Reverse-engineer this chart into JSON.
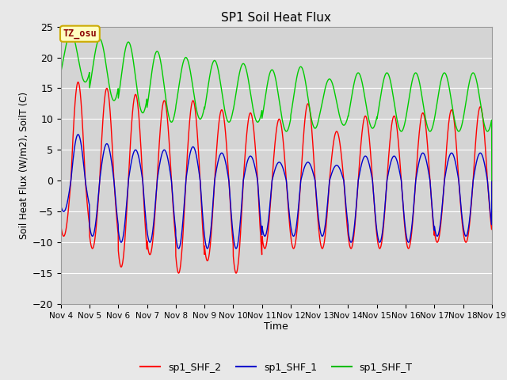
{
  "title": "SP1 Soil Heat Flux",
  "xlabel": "Time",
  "ylabel": "Soil Heat Flux (W/m2), SoilT (C)",
  "ylim": [
    -20,
    25
  ],
  "fig_width": 6.4,
  "fig_height": 4.8,
  "dpi": 100,
  "background_color": "#e8e8e8",
  "plot_bg_color": "#d4d4d4",
  "tz_label": "TZ_osu",
  "legend_entries": [
    "sp1_SHF_2",
    "sp1_SHF_1",
    "sp1_SHF_T"
  ],
  "legend_colors": [
    "#ff0000",
    "#0000cc",
    "#00bb00"
  ],
  "shf2_color": "#ff0000",
  "shf1_color": "#0000cc",
  "shft_color": "#00cc00",
  "grid_color": "#ffffff",
  "yticks": [
    -20,
    -15,
    -10,
    -5,
    0,
    5,
    10,
    15,
    20,
    25
  ],
  "x_labels": [
    "Nov 4",
    "Nov 5",
    "Nov 6",
    "Nov 7",
    "Nov 8",
    "Nov 9",
    "Nov 10",
    "Nov 11",
    "Nov 12",
    "Nov 13",
    "Nov 14",
    "Nov 15",
    "Nov 16",
    "Nov 17",
    "Nov 18",
    "Nov 19"
  ],
  "shf2_peaks": [
    16,
    15,
    14,
    13,
    13,
    11.5,
    11,
    10,
    12.5,
    8,
    10.5,
    10.5,
    11,
    11.5,
    12
  ],
  "shf2_troughs": [
    -9,
    -11,
    -14,
    -12,
    -15,
    -13,
    -15,
    -11,
    -11,
    -11,
    -11,
    -11,
    -11,
    -10,
    -10
  ],
  "shf1_peaks": [
    7.5,
    6,
    5,
    5,
    5.5,
    4.5,
    4,
    3,
    3,
    2.5,
    4,
    4,
    4.5,
    4.5,
    4.5
  ],
  "shf1_troughs": [
    -5,
    -9,
    -10,
    -10,
    -11,
    -11,
    -11,
    -9,
    -9,
    -9,
    -10,
    -10,
    -10,
    -9,
    -9
  ],
  "shft_maxes": [
    24,
    23,
    22.5,
    21,
    20,
    19.5,
    19,
    18,
    18.5,
    16.5,
    17.5,
    17.5,
    17.5,
    17.5,
    17.5
  ],
  "shft_mins": [
    16,
    13,
    11,
    9.5,
    10,
    9.5,
    9.5,
    8,
    8.5,
    9,
    8.5,
    8,
    8,
    8,
    8
  ]
}
